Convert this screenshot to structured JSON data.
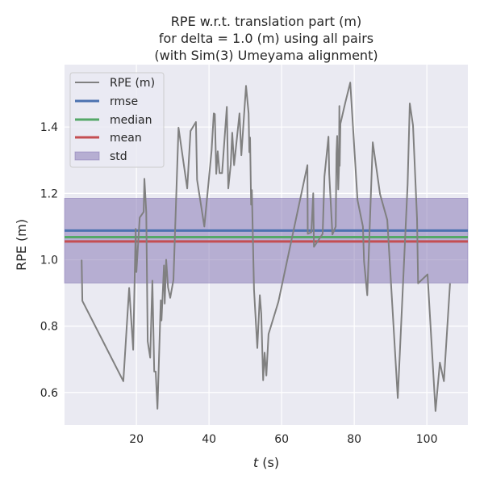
{
  "chart_data": {
    "type": "line",
    "title": [
      "RPE w.r.t. translation part (m)",
      "for delta = 1.0 (m) using all pairs",
      "(with Sim(3) Umeyama alignment)"
    ],
    "xlabel_var": "t",
    "xlabel_unit": " (s)",
    "ylabel": "RPE (m)",
    "xlim": [
      0.2,
      111.3
    ],
    "ylim": [
      0.502,
      1.588
    ],
    "xticks": [
      20,
      40,
      60,
      80,
      100
    ],
    "yticks": [
      0.6,
      0.8,
      1.0,
      1.2,
      1.4
    ],
    "xtick_labels": [
      "20",
      "40",
      "60",
      "80",
      "100"
    ],
    "ytick_labels": [
      "0.6",
      "0.8",
      "1.0",
      "1.2",
      "1.4"
    ],
    "grid": true,
    "legend_position": "top-left",
    "legend": [
      "RPE (m)",
      "rmse",
      "median",
      "mean",
      "std"
    ],
    "stats": {
      "rmse": 1.088,
      "median": 1.068,
      "mean": 1.055,
      "std_low": 0.93,
      "std_high": 1.185
    },
    "colors": {
      "rpe": "#808080",
      "rmse": "#4c72b0",
      "median": "#55a868",
      "mean": "#c44e52",
      "std": "#8172b2",
      "bg": "#eaeaf2"
    },
    "series": [
      {
        "name": "RPE (m)",
        "x": [
          4.9,
          5.1,
          16.4,
          18.0,
          19.1,
          19.8,
          20.0,
          20.9,
          22.0,
          22.2,
          22.7,
          23.1,
          23.8,
          24.4,
          24.9,
          25.3,
          25.8,
          26.7,
          26.9,
          27.6,
          27.8,
          28.2,
          28.7,
          29.3,
          30.2,
          31.6,
          34.0,
          34.9,
          36.4,
          36.7,
          38.7,
          40.7,
          41.3,
          41.6,
          42.0,
          42.4,
          42.9,
          43.6,
          44.9,
          45.3,
          46.0,
          46.4,
          46.9,
          48.4,
          48.9,
          50.2,
          50.9,
          51.1,
          51.3,
          51.6,
          51.8,
          52.4,
          53.3,
          54.0,
          54.4,
          54.9,
          55.3,
          55.8,
          56.4,
          59.1,
          67.1,
          67.2,
          68.2,
          68.7,
          68.9,
          71.3,
          71.8,
          72.9,
          73.1,
          74.0,
          74.9,
          75.1,
          75.3,
          75.6,
          75.8,
          75.9,
          76.0,
          76.2,
          77.6,
          78.9,
          80.9,
          82.4,
          82.7,
          83.6,
          85.1,
          87.1,
          89.1,
          92.0,
          94.7,
          95.3,
          96.2,
          97.3,
          97.6,
          100.2,
          102.4,
          103.6,
          104.7,
          106.4
        ],
        "y": [
          1.0,
          0.876,
          0.634,
          0.915,
          0.729,
          1.093,
          0.963,
          1.127,
          1.144,
          1.244,
          1.144,
          0.754,
          0.705,
          0.937,
          0.663,
          0.663,
          0.551,
          0.878,
          0.817,
          0.983,
          0.868,
          1.0,
          0.917,
          0.885,
          0.939,
          1.398,
          1.215,
          1.388,
          1.415,
          1.241,
          1.1,
          1.329,
          1.441,
          1.439,
          1.259,
          1.327,
          1.261,
          1.261,
          1.461,
          1.215,
          1.288,
          1.383,
          1.285,
          1.441,
          1.315,
          1.524,
          1.441,
          1.324,
          1.368,
          1.166,
          1.21,
          0.91,
          0.734,
          0.893,
          0.837,
          0.637,
          0.72,
          0.651,
          0.776,
          0.873,
          1.285,
          1.078,
          1.083,
          1.2,
          1.039,
          1.078,
          1.251,
          1.371,
          1.259,
          1.076,
          1.1,
          1.32,
          1.373,
          1.212,
          1.276,
          1.463,
          1.283,
          1.41,
          1.476,
          1.534,
          1.18,
          1.1,
          0.995,
          0.893,
          1.354,
          1.198,
          1.12,
          0.583,
          1.227,
          1.471,
          1.405,
          1.124,
          0.929,
          0.956,
          0.544,
          0.69,
          0.634,
          0.929
        ]
      }
    ]
  }
}
